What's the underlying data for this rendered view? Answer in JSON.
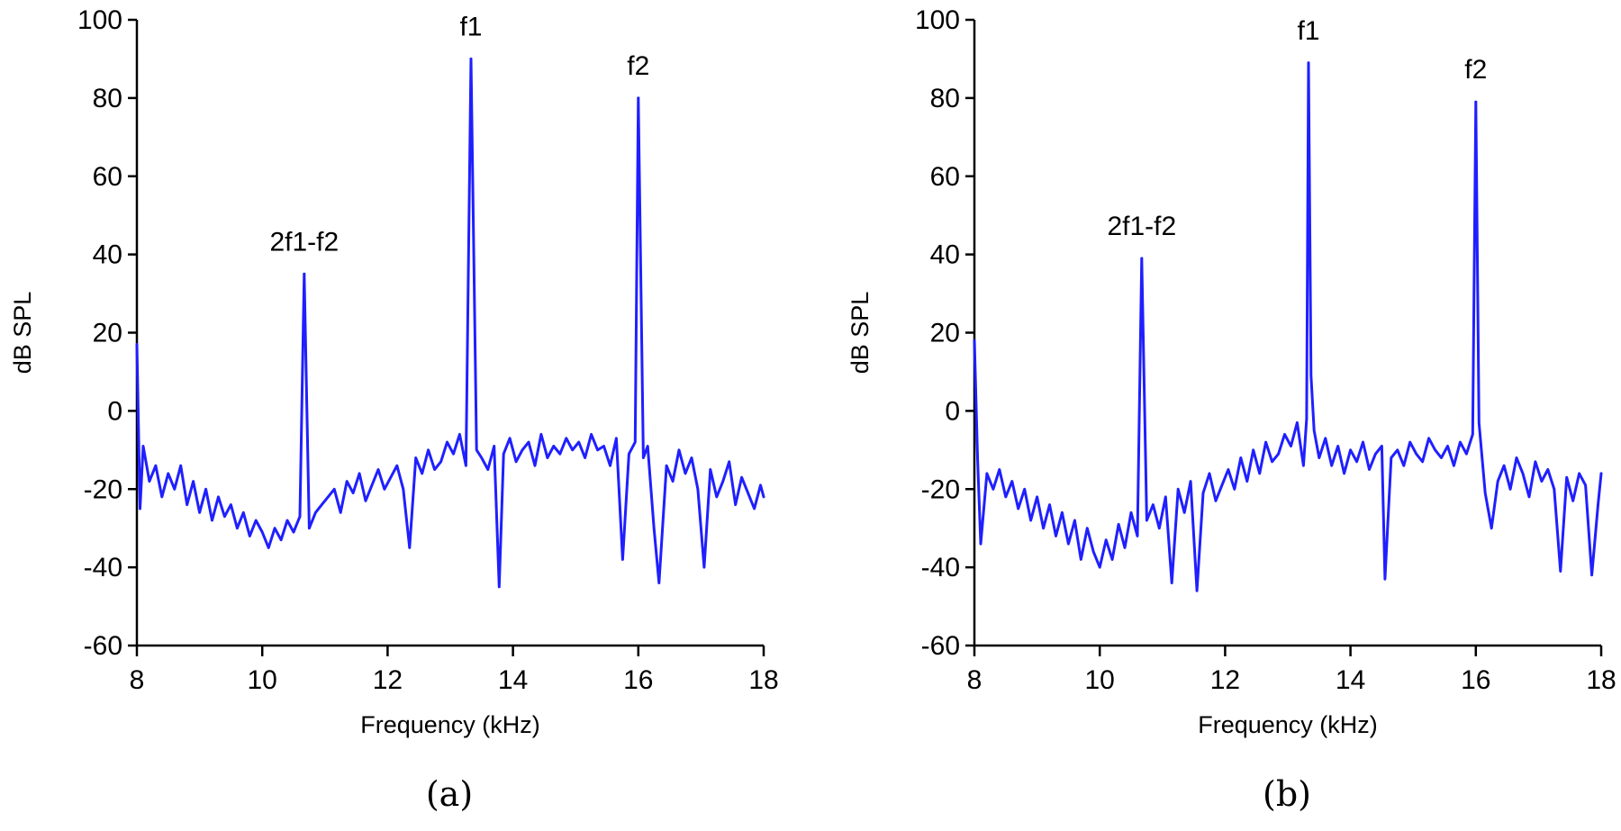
{
  "style": {
    "series_color": "#1f1fff"
  },
  "chart_data": [
    {
      "type": "line",
      "panel_label": "(a)",
      "xlabel": "Frequency (kHz)",
      "ylabel": "dB SPL",
      "xlim": [
        8,
        18
      ],
      "ylim": [
        -60,
        100
      ],
      "xticks": [
        8,
        10,
        12,
        14,
        16,
        18
      ],
      "yticks": [
        -60,
        -40,
        -20,
        0,
        20,
        40,
        60,
        80,
        100
      ],
      "grid": false,
      "legend": "none",
      "annotations": [
        {
          "text": "2f1-f2",
          "x": 10.67,
          "y": 35
        },
        {
          "text": "f1",
          "x": 13.33,
          "y": 90
        },
        {
          "text": "f2",
          "x": 16.0,
          "y": 80
        }
      ],
      "peaks": [
        {
          "x": 8.0,
          "y": 17
        },
        {
          "x": 10.67,
          "y": 35
        },
        {
          "x": 13.33,
          "y": 90
        },
        {
          "x": 16.0,
          "y": 80
        }
      ],
      "series": [
        {
          "x": [
            8.0,
            8.05,
            8.1,
            8.2,
            8.3,
            8.4,
            8.5,
            8.6,
            8.7,
            8.8,
            8.9,
            9.0,
            9.1,
            9.2,
            9.3,
            9.4,
            9.5,
            9.6,
            9.7,
            9.8,
            9.9,
            10.0,
            10.1,
            10.2,
            10.3,
            10.4,
            10.5,
            10.6,
            10.67,
            10.75,
            10.85,
            10.95,
            11.05,
            11.15,
            11.25,
            11.35,
            11.45,
            11.55,
            11.65,
            11.75,
            11.85,
            11.95,
            12.05,
            12.15,
            12.25,
            12.35,
            12.45,
            12.55,
            12.65,
            12.75,
            12.85,
            12.95,
            13.05,
            13.15,
            13.25,
            13.33,
            13.42,
            13.5,
            13.6,
            13.7,
            13.78,
            13.85,
            13.95,
            14.05,
            14.15,
            14.25,
            14.35,
            14.45,
            14.55,
            14.65,
            14.75,
            14.85,
            14.95,
            15.05,
            15.15,
            15.25,
            15.35,
            15.45,
            15.55,
            15.65,
            15.75,
            15.85,
            15.95,
            16.0,
            16.08,
            16.15,
            16.25,
            16.33,
            16.45,
            16.55,
            16.65,
            16.75,
            16.85,
            16.95,
            17.05,
            17.15,
            17.25,
            17.35,
            17.45,
            17.55,
            17.65,
            17.75,
            17.85,
            17.95,
            18.0
          ],
          "y": [
            17,
            -25,
            -9,
            -18,
            -14,
            -22,
            -16,
            -20,
            -14,
            -24,
            -18,
            -26,
            -20,
            -28,
            -22,
            -27,
            -24,
            -30,
            -26,
            -32,
            -28,
            -31,
            -35,
            -30,
            -33,
            -28,
            -31,
            -27,
            35,
            -30,
            -26,
            -24,
            -22,
            -20,
            -26,
            -18,
            -21,
            -16,
            -23,
            -19,
            -15,
            -20,
            -17,
            -14,
            -20,
            -35,
            -12,
            -16,
            -10,
            -15,
            -13,
            -8,
            -11,
            -6,
            -14,
            90,
            -10,
            -12,
            -15,
            -9,
            -45,
            -11,
            -7,
            -13,
            -10,
            -8,
            -14,
            -6,
            -12,
            -9,
            -11,
            -7,
            -10,
            -8,
            -12,
            -6,
            -10,
            -9,
            -14,
            -7,
            -38,
            -11,
            -8,
            80,
            -12,
            -9,
            -30,
            -44,
            -14,
            -18,
            -10,
            -16,
            -12,
            -20,
            -40,
            -15,
            -22,
            -18,
            -13,
            -24,
            -17,
            -21,
            -25,
            -19,
            -22
          ]
        }
      ]
    },
    {
      "type": "line",
      "panel_label": "(b)",
      "xlabel": "Frequency (kHz)",
      "ylabel": "dB SPL",
      "xlim": [
        8,
        18
      ],
      "ylim": [
        -60,
        100
      ],
      "xticks": [
        8,
        10,
        12,
        14,
        16,
        18
      ],
      "yticks": [
        -60,
        -40,
        -20,
        0,
        20,
        40,
        60,
        80,
        100
      ],
      "grid": false,
      "legend": "none",
      "annotations": [
        {
          "text": "2f1-f2",
          "x": 10.67,
          "y": 39
        },
        {
          "text": "f1",
          "x": 13.33,
          "y": 89
        },
        {
          "text": "f2",
          "x": 16.0,
          "y": 79
        }
      ],
      "peaks": [
        {
          "x": 8.0,
          "y": 18
        },
        {
          "x": 10.67,
          "y": 39
        },
        {
          "x": 13.33,
          "y": 89
        },
        {
          "x": 16.0,
          "y": 79
        }
      ],
      "series": [
        {
          "x": [
            8.0,
            8.05,
            8.1,
            8.2,
            8.3,
            8.4,
            8.5,
            8.6,
            8.7,
            8.8,
            8.9,
            9.0,
            9.1,
            9.2,
            9.3,
            9.4,
            9.5,
            9.6,
            9.7,
            9.8,
            9.9,
            10.0,
            10.1,
            10.2,
            10.3,
            10.4,
            10.5,
            10.6,
            10.67,
            10.75,
            10.85,
            10.95,
            11.05,
            11.15,
            11.25,
            11.35,
            11.45,
            11.55,
            11.65,
            11.75,
            11.85,
            11.95,
            12.05,
            12.15,
            12.25,
            12.35,
            12.45,
            12.55,
            12.65,
            12.75,
            12.85,
            12.95,
            13.05,
            13.15,
            13.25,
            13.3,
            13.33,
            13.37,
            13.42,
            13.5,
            13.6,
            13.7,
            13.8,
            13.9,
            14.0,
            14.1,
            14.2,
            14.3,
            14.4,
            14.5,
            14.55,
            14.65,
            14.75,
            14.85,
            14.95,
            15.05,
            15.15,
            15.25,
            15.35,
            15.45,
            15.55,
            15.65,
            15.75,
            15.85,
            15.95,
            16.0,
            16.05,
            16.15,
            16.25,
            16.35,
            16.45,
            16.55,
            16.65,
            16.75,
            16.85,
            16.95,
            17.05,
            17.15,
            17.25,
            17.35,
            17.45,
            17.55,
            17.65,
            17.75,
            17.85,
            17.95,
            18.0
          ],
          "y": [
            18,
            -12,
            -34,
            -16,
            -20,
            -15,
            -22,
            -18,
            -25,
            -20,
            -28,
            -22,
            -30,
            -24,
            -32,
            -26,
            -34,
            -28,
            -38,
            -30,
            -36,
            -40,
            -33,
            -38,
            -29,
            -35,
            -26,
            -32,
            39,
            -28,
            -24,
            -30,
            -22,
            -44,
            -20,
            -26,
            -18,
            -46,
            -21,
            -16,
            -23,
            -19,
            -15,
            -20,
            -12,
            -18,
            -10,
            -16,
            -8,
            -13,
            -11,
            -6,
            -9,
            -3,
            -14,
            -2,
            89,
            9,
            -5,
            -12,
            -7,
            -14,
            -9,
            -16,
            -10,
            -13,
            -8,
            -15,
            -11,
            -9,
            -43,
            -12,
            -10,
            -14,
            -8,
            -11,
            -13,
            -7,
            -10,
            -12,
            -9,
            -14,
            -8,
            -11,
            -6,
            79,
            -3,
            -21,
            -30,
            -18,
            -14,
            -20,
            -12,
            -16,
            -22,
            -13,
            -18,
            -15,
            -20,
            -41,
            -17,
            -23,
            -16,
            -19,
            -42,
            -24,
            -16
          ]
        }
      ]
    }
  ]
}
